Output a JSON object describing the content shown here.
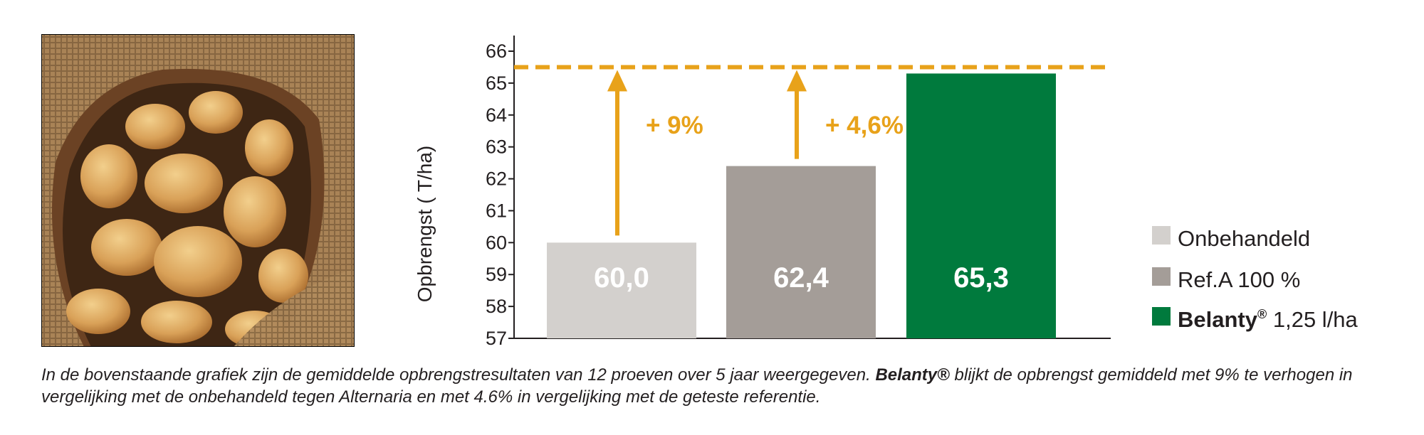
{
  "photo": {
    "subject": "potatoes-in-burlap-sack"
  },
  "chart_data": {
    "type": "bar",
    "categories": [
      "Onbehandeld",
      "Ref.A 100 %",
      "Belanty 1,25 l/ha"
    ],
    "values": [
      60.0,
      62.4,
      65.3
    ],
    "value_labels": [
      "60,0",
      "62,4",
      "65,3"
    ],
    "ylabel": "Opbrengst ( T/ha)",
    "ylim": [
      57,
      66
    ],
    "yticks": [
      "57",
      "58",
      "59",
      "60",
      "61",
      "62",
      "63",
      "64",
      "65",
      "66"
    ],
    "grid": false,
    "reference_line": {
      "value": 65.5,
      "style": "dashed"
    },
    "annotations": [
      "+ 9%",
      "+ 4,6%"
    ],
    "legend": {
      "position": "right",
      "items": [
        {
          "text": "Onbehandeld"
        },
        {
          "text": "Ref.A 100 %"
        },
        {
          "brand": "Belanty",
          "mark": "®",
          "text": " 1,25 l/ha"
        }
      ]
    },
    "colors": [
      "#d3d0cd",
      "#a49d98",
      "#007a3d"
    ],
    "accent_color": "#e8a21a"
  },
  "caption": {
    "part1": "In de bovenstaande grafiek zijn de gemiddelde opbrengstresultaten van 12 proeven over 5 jaar weergegeven. ",
    "brand": "Belanty®",
    "part2": " blijkt de opbrengst gemiddeld met 9% te verhogen in vergelijking met de onbehandeld tegen Alternaria en met 4.6% in vergelijking met de geteste referentie."
  }
}
